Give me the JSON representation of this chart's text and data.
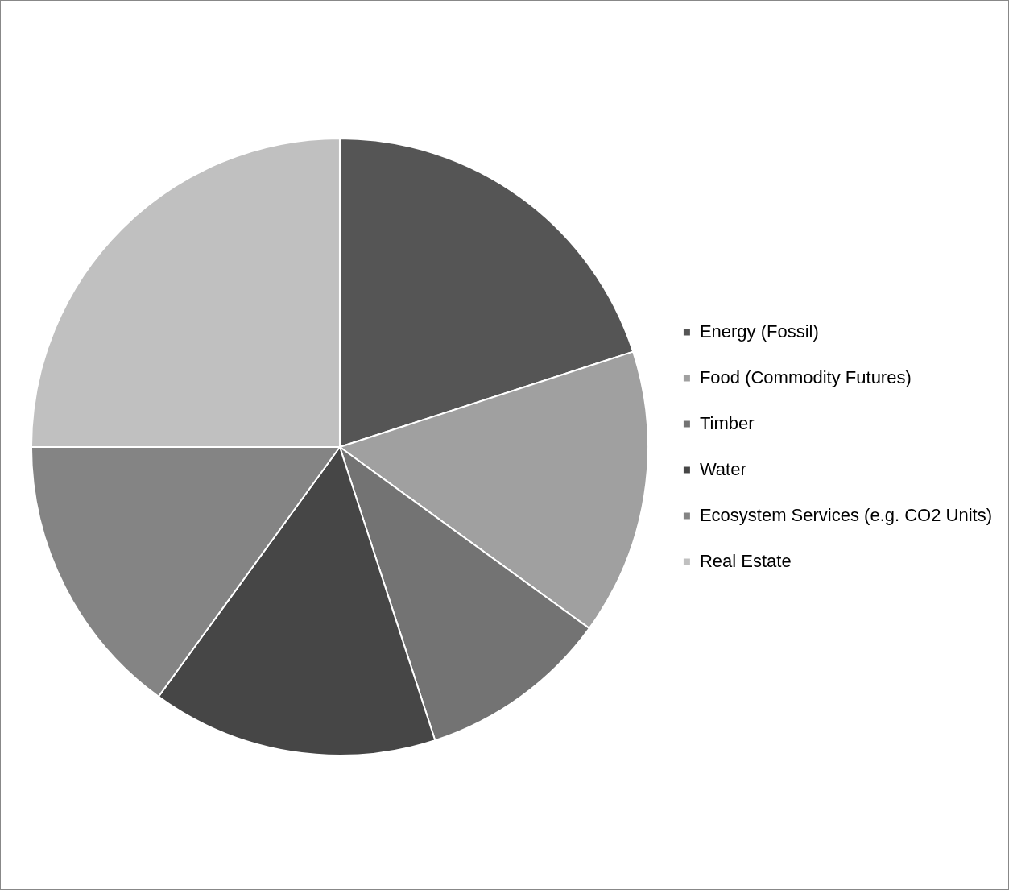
{
  "chart_data": {
    "type": "pie",
    "categories": [
      "Energy (Fossil)",
      "Food (Commodity Futures)",
      "Timber",
      "Water",
      "Ecosystem Services (e.g. CO2 Units)",
      "Real Estate"
    ],
    "values": [
      20,
      15,
      10,
      15,
      15,
      25
    ],
    "colors": [
      "#555555",
      "#a0a0a0",
      "#737373",
      "#464646",
      "#848484",
      "#c0c0c0"
    ],
    "legend": "right"
  }
}
